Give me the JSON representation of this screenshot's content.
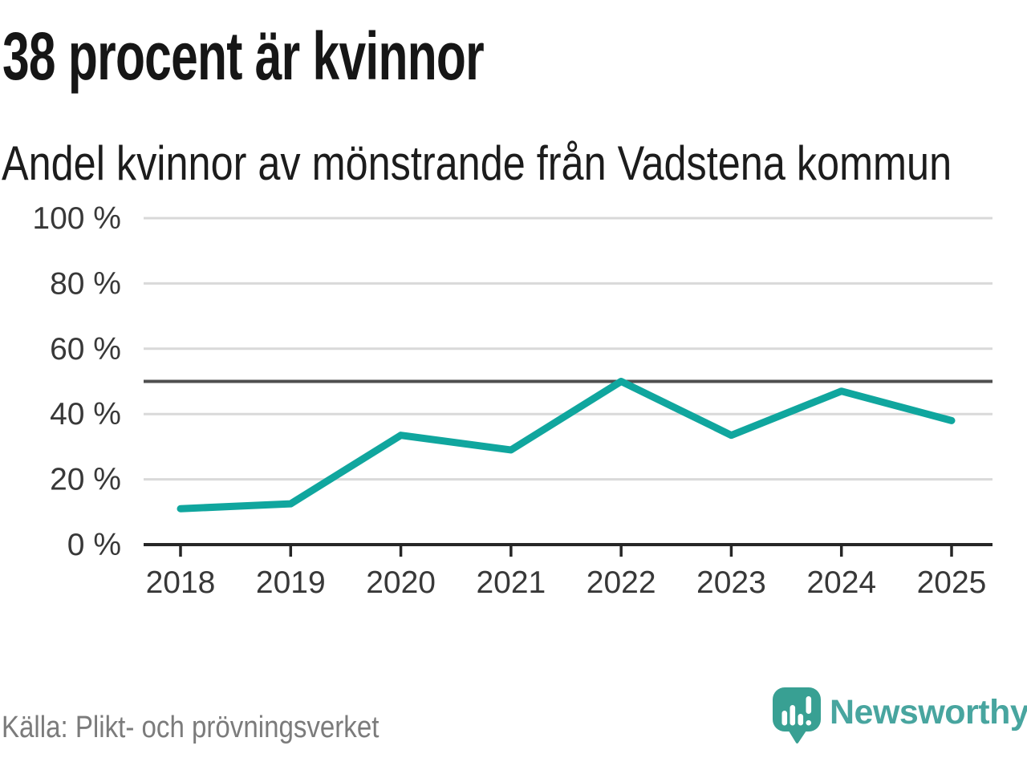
{
  "title": "38 procent är kvinnor",
  "subtitle": "Andel kvinnor av mönstrande från Vadstena kommun",
  "source": "Källa: Plikt- och prövningsverket",
  "branding": {
    "name": "Newsworthy",
    "logo_icon": "newsworthy-speech-bubble-bar-chart-icon"
  },
  "colors": {
    "background": "#ffffff",
    "line": "#10a69e",
    "grid": "#d9d9d9",
    "reference_line": "#4f4f4f",
    "axis": "#262626",
    "axis_text": "#383838",
    "title_text": "#161616",
    "subtitle_text": "#1c1c1c",
    "source_text": "#7b7b7b",
    "logo": "#38a093",
    "logo_text": "#48a59f"
  },
  "chart_data": {
    "type": "line",
    "title": "38 procent är kvinnor",
    "subtitle": "Andel kvinnor av mönstrande från Vadstena kommun",
    "x": [
      "2018",
      "2019",
      "2020",
      "2021",
      "2022",
      "2023",
      "2024",
      "2025"
    ],
    "series": [
      {
        "name": "Andel kvinnor av mönstrande",
        "unit": "%",
        "values": [
          11,
          12.5,
          33.5,
          29,
          50,
          33.5,
          47,
          38
        ]
      }
    ],
    "ylim": [
      0,
      100
    ],
    "yticks": [
      0,
      20,
      40,
      60,
      80,
      100
    ],
    "ytick_labels": [
      "0 %",
      "20 %",
      "40 %",
      "60 %",
      "80 %",
      "100 %"
    ],
    "reference_line": 50,
    "grid": true,
    "legend": false
  }
}
